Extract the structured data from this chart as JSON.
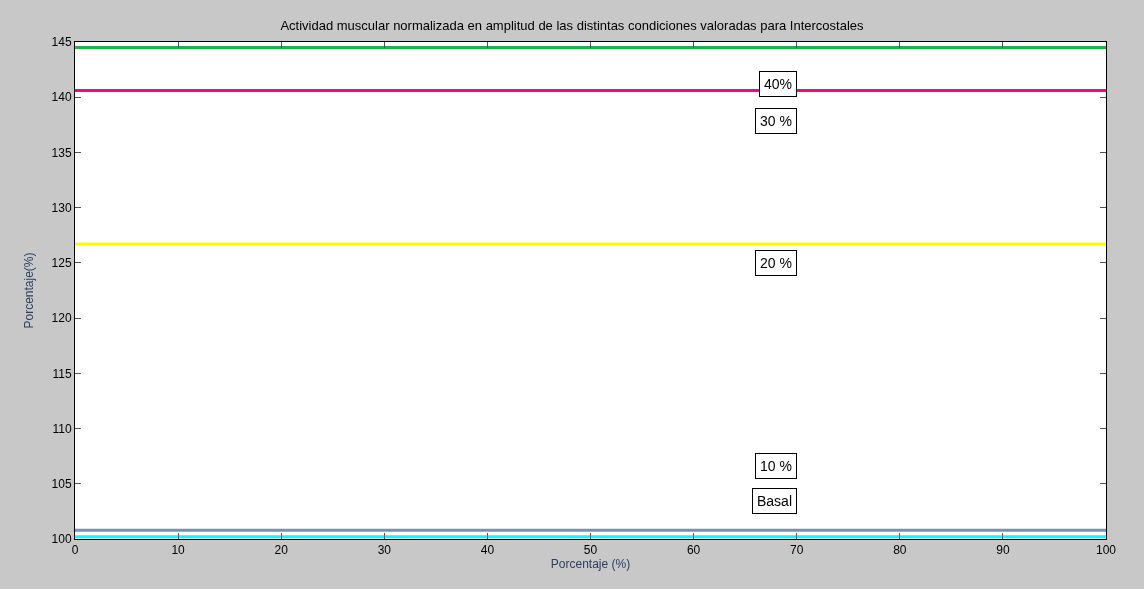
{
  "chart_data": {
    "type": "line",
    "title": "Actividad muscular normalizada en amplitud de las distintas condiciones valoradas para Intercostales",
    "xlabel": "Porcentaje (%)",
    "ylabel": "Porcentaje(%)",
    "x": [
      0,
      100
    ],
    "series": [
      {
        "color": "#22b14c",
        "values": [
          144.5,
          144.5
        ]
      },
      {
        "color": "#ff0080",
        "values": [
          140.6,
          140.6
        ]
      },
      {
        "color": "#ffff00",
        "values": [
          126.7,
          126.7
        ]
      },
      {
        "color": "#7092be",
        "values": [
          100.8,
          100.8
        ]
      },
      {
        "color": "#00ffff",
        "values": [
          100.2,
          100.2
        ]
      }
    ],
    "annotations": [
      "40%",
      "30 %",
      "20 %",
      "10 %",
      "Basal"
    ],
    "xlim": [
      0,
      100
    ],
    "xticks": [
      0,
      10,
      20,
      30,
      40,
      50,
      60,
      70,
      80,
      90,
      100
    ],
    "ylim": [
      100,
      145
    ],
    "yticks": [
      100,
      105,
      110,
      115,
      120,
      125,
      130,
      135,
      140,
      145
    ],
    "grid": false,
    "legend": false,
    "marker": "none",
    "line_style": "solid"
  }
}
